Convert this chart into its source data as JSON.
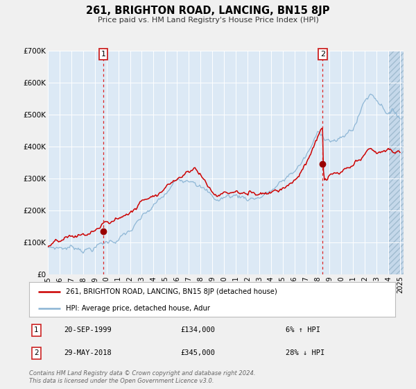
{
  "title": "261, BRIGHTON ROAD, LANCING, BN15 8JP",
  "subtitle": "Price paid vs. HM Land Registry's House Price Index (HPI)",
  "x_start_year": 1995,
  "x_end_year": 2025,
  "y_min": 0,
  "y_max": 700000,
  "y_ticks": [
    0,
    100000,
    200000,
    300000,
    400000,
    500000,
    600000,
    700000
  ],
  "y_tick_labels": [
    "£0",
    "£100K",
    "£200K",
    "£300K",
    "£400K",
    "£500K",
    "£600K",
    "£700K"
  ],
  "sale1_year": 1999.72,
  "sale1_price": 134000,
  "sale1_date": "20-SEP-1999",
  "sale1_hpi_diff": "6% ↑ HPI",
  "sale2_year": 2018.41,
  "sale2_price": 345000,
  "sale2_date": "29-MAY-2018",
  "sale2_hpi_diff": "28% ↓ HPI",
  "hpi_line_color": "#8ab4d4",
  "price_line_color": "#cc0000",
  "sale_dot_color": "#990000",
  "dashed_line_color": "#dd2222",
  "plot_bg_color": "#dce9f5",
  "fig_bg_color": "#f0f0f0",
  "legend_line1": "261, BRIGHTON ROAD, LANCING, BN15 8JP (detached house)",
  "legend_line2": "HPI: Average price, detached house, Adur",
  "footer": "Contains HM Land Registry data © Crown copyright and database right 2024.\nThis data is licensed under the Open Government Licence v3.0.",
  "grid_color": "#ffffff"
}
